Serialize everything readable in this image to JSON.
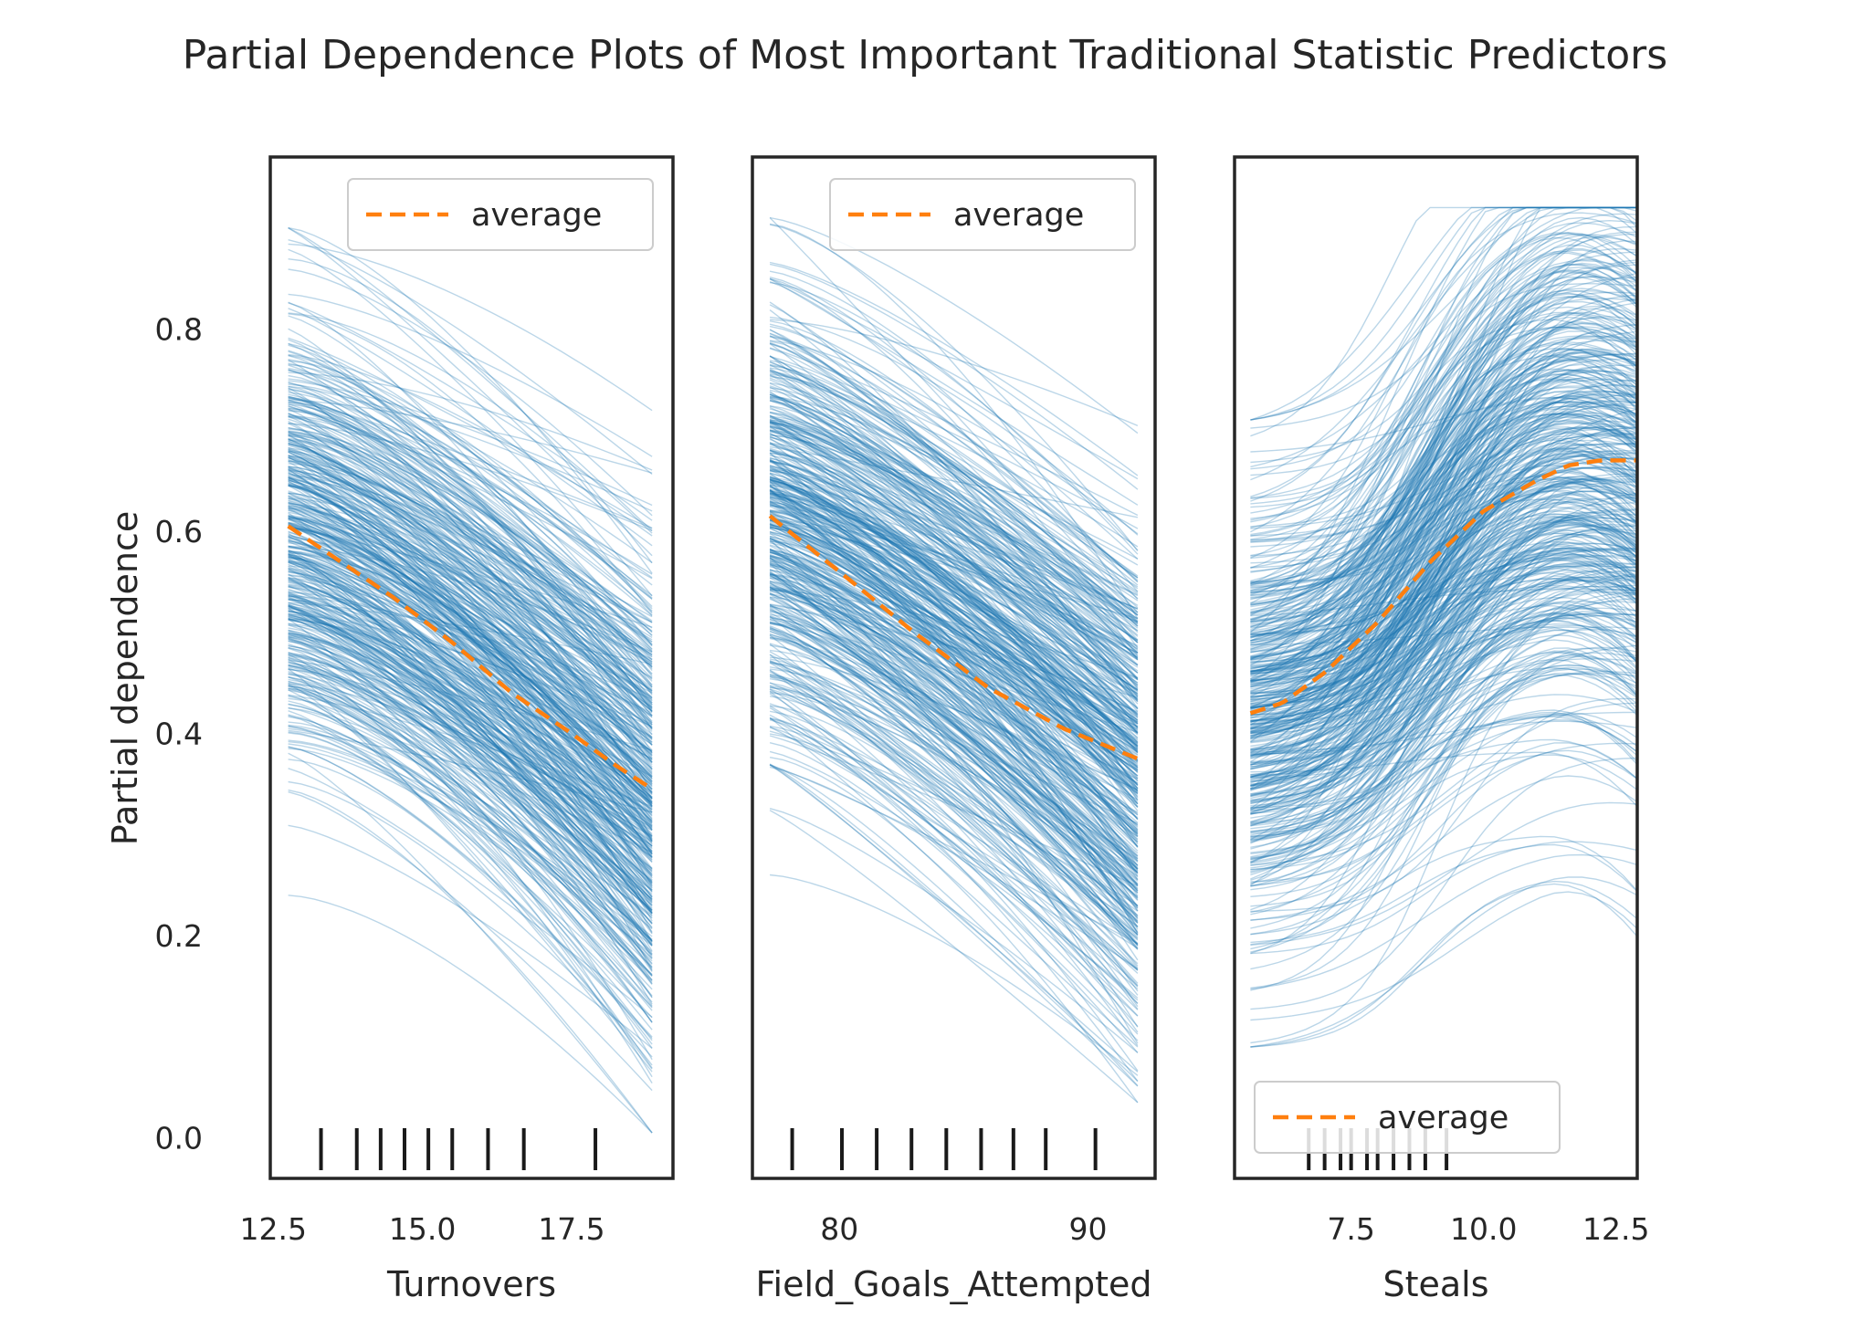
{
  "chart_data": {
    "type": "line",
    "title": "Partial Dependence Plots of Most Important Traditional Statistic Predictors",
    "ylabel": "Partial dependence",
    "ylim": [
      -0.04,
      0.97
    ],
    "yticks": [
      0.0,
      0.2,
      0.4,
      0.6,
      0.8
    ],
    "ytick_labels": [
      "0.0",
      "0.2",
      "0.4",
      "0.6",
      "0.8"
    ],
    "colors": {
      "individual": "#1f77b4",
      "average": "#ff7f0e",
      "rug": "#1a1a1a",
      "frame": "#262626"
    },
    "legend_label": "average",
    "panels": [
      {
        "xlabel": "Turnovers",
        "xlim": [
          12.45,
          19.2
        ],
        "xticks": [
          12.5,
          15.0,
          17.5
        ],
        "xtick_labels": [
          "12.5",
          "15.0",
          "17.5"
        ],
        "x_range": [
          12.75,
          18.85
        ],
        "average": {
          "x": [
            12.75,
            13.5,
            14.5,
            15.5,
            16.5,
            17.5,
            18.2,
            18.85
          ],
          "y": [
            0.605,
            0.575,
            0.535,
            0.49,
            0.44,
            0.4,
            0.37,
            0.345
          ]
        },
        "deciles": [
          13.3,
          13.9,
          14.3,
          14.7,
          15.1,
          15.5,
          16.1,
          16.7,
          17.9
        ],
        "legend_position": "upper right"
      },
      {
        "xlabel": "Field_Goals_Attempted",
        "xlim": [
          76.5,
          92.7
        ],
        "xticks": [
          80,
          90
        ],
        "xtick_labels": [
          "80",
          "90"
        ],
        "x_range": [
          77.2,
          92.0
        ],
        "average": {
          "x": [
            77.2,
            80.0,
            83.0,
            86.0,
            89.0,
            92.0
          ],
          "y": [
            0.615,
            0.56,
            0.5,
            0.445,
            0.405,
            0.375
          ]
        },
        "deciles": [
          78.1,
          80.1,
          81.5,
          82.9,
          84.3,
          85.7,
          87.0,
          88.3,
          90.3
        ],
        "legend_position": "upper right"
      },
      {
        "xlabel": "Steals",
        "xlim": [
          5.3,
          12.9
        ],
        "xticks": [
          7.5,
          10.0,
          12.5
        ],
        "xtick_labels": [
          "7.5",
          "10.0",
          "12.5"
        ],
        "x_range": [
          5.6,
          12.9
        ],
        "average": {
          "x": [
            5.6,
            6.2,
            7.0,
            8.0,
            9.0,
            10.0,
            11.0,
            11.6,
            12.2,
            12.9
          ],
          "y": [
            0.42,
            0.43,
            0.46,
            0.51,
            0.57,
            0.62,
            0.65,
            0.665,
            0.67,
            0.67
          ]
        },
        "deciles": [
          6.7,
          7.0,
          7.3,
          7.5,
          7.8,
          8.0,
          8.3,
          8.6,
          8.9,
          9.3
        ],
        "legend_position": "lower left"
      }
    ]
  }
}
